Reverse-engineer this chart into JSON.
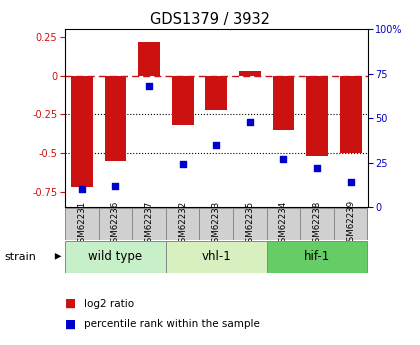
{
  "title": "GDS1379 / 3932",
  "samples": [
    "GSM62231",
    "GSM62236",
    "GSM62237",
    "GSM62232",
    "GSM62233",
    "GSM62235",
    "GSM62234",
    "GSM62238",
    "GSM62239"
  ],
  "log2_ratio": [
    -0.72,
    -0.55,
    0.22,
    -0.32,
    -0.22,
    0.03,
    -0.35,
    -0.52,
    -0.5
  ],
  "percentile_rank": [
    10,
    12,
    68,
    24,
    35,
    48,
    27,
    22,
    14
  ],
  "groups": [
    {
      "label": "wild type",
      "start": 0,
      "end": 3,
      "color": "#c8f0c8"
    },
    {
      "label": "vhl-1",
      "start": 3,
      "end": 6,
      "color": "#d8f0c0"
    },
    {
      "label": "hif-1",
      "start": 6,
      "end": 9,
      "color": "#66cc66"
    }
  ],
  "bar_color": "#cc1111",
  "dot_color": "#0000cc",
  "ylim_left": [
    -0.85,
    0.3
  ],
  "ylim_right": [
    0,
    100
  ],
  "yticks_left": [
    -0.75,
    -0.5,
    -0.25,
    0,
    0.25
  ],
  "yticks_right": [
    0,
    25,
    50,
    75,
    100
  ],
  "dotted_lines": [
    -0.25,
    -0.5
  ],
  "bar_width": 0.65,
  "bg_color": "#ffffff",
  "legend_items": [
    {
      "label": "log2 ratio",
      "color": "#cc1111"
    },
    {
      "label": "percentile rank within the sample",
      "color": "#0000cc"
    }
  ]
}
